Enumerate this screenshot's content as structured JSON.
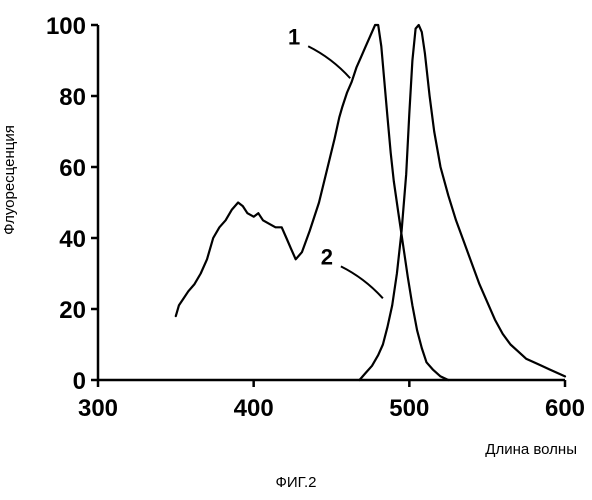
{
  "caption": "ФИГ.2",
  "chart_data": {
    "type": "line",
    "xlabel": "Длина волны",
    "ylabel": "Флуоресценция",
    "xlim": [
      300,
      600
    ],
    "ylim": [
      0,
      100
    ],
    "x_ticks": [
      300,
      400,
      500,
      600
    ],
    "y_ticks": [
      0,
      20,
      40,
      60,
      80,
      100
    ],
    "grid": false,
    "legend": "none",
    "series": [
      {
        "name": "1",
        "label_at": [
          462,
          85
        ],
        "points": [
          [
            350,
            18
          ],
          [
            352,
            21
          ],
          [
            355,
            23
          ],
          [
            358,
            25
          ],
          [
            362,
            27
          ],
          [
            366,
            30
          ],
          [
            370,
            34
          ],
          [
            374,
            40
          ],
          [
            378,
            43
          ],
          [
            382,
            45
          ],
          [
            386,
            48
          ],
          [
            390,
            50
          ],
          [
            393,
            49
          ],
          [
            396,
            47
          ],
          [
            400,
            46
          ],
          [
            403,
            47
          ],
          [
            406,
            45
          ],
          [
            410,
            44
          ],
          [
            414,
            43
          ],
          [
            418,
            43
          ],
          [
            421,
            40
          ],
          [
            424,
            37
          ],
          [
            427,
            34
          ],
          [
            431,
            36
          ],
          [
            436,
            42
          ],
          [
            442,
            50
          ],
          [
            447,
            59
          ],
          [
            452,
            68
          ],
          [
            455,
            74
          ],
          [
            457,
            77
          ],
          [
            460,
            81
          ],
          [
            463,
            84
          ],
          [
            466,
            88
          ],
          [
            469,
            91
          ],
          [
            472,
            94
          ],
          [
            475,
            97
          ],
          [
            478,
            100
          ],
          [
            480,
            100
          ],
          [
            482,
            94
          ],
          [
            484,
            84
          ],
          [
            486,
            74
          ],
          [
            488,
            64
          ],
          [
            490,
            56
          ],
          [
            493,
            47
          ],
          [
            496,
            38
          ],
          [
            499,
            29
          ],
          [
            502,
            21
          ],
          [
            505,
            14
          ],
          [
            508,
            9
          ],
          [
            511,
            5
          ],
          [
            515,
            3
          ],
          [
            520,
            1
          ],
          [
            525,
            0
          ]
        ]
      },
      {
        "name": "2",
        "label_at": [
          483,
          23
        ],
        "points": [
          [
            468,
            0
          ],
          [
            472,
            2
          ],
          [
            476,
            4
          ],
          [
            480,
            7
          ],
          [
            483,
            10
          ],
          [
            486,
            15
          ],
          [
            489,
            21
          ],
          [
            492,
            30
          ],
          [
            495,
            42
          ],
          [
            498,
            58
          ],
          [
            500,
            75
          ],
          [
            502,
            90
          ],
          [
            504,
            99
          ],
          [
            506,
            100
          ],
          [
            508,
            98
          ],
          [
            510,
            92
          ],
          [
            513,
            80
          ],
          [
            516,
            70
          ],
          [
            520,
            60
          ],
          [
            525,
            52
          ],
          [
            530,
            45
          ],
          [
            535,
            39
          ],
          [
            540,
            33
          ],
          [
            545,
            27
          ],
          [
            550,
            22
          ],
          [
            555,
            17
          ],
          [
            560,
            13
          ],
          [
            565,
            10
          ],
          [
            570,
            8
          ],
          [
            575,
            6
          ],
          [
            580,
            5
          ],
          [
            585,
            4
          ],
          [
            590,
            3
          ],
          [
            595,
            2
          ],
          [
            600,
            1
          ]
        ]
      }
    ]
  }
}
